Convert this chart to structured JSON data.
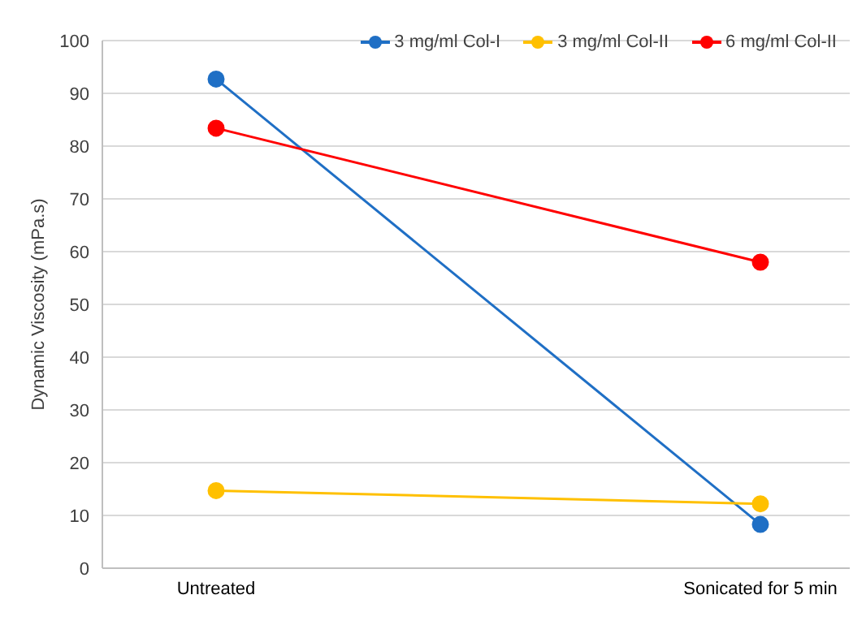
{
  "chart_data": {
    "type": "line",
    "ylabel": "Dynamic Viscosity (mPa.s)",
    "categories": [
      "Untreated",
      "Sonicated for 5 min"
    ],
    "series": [
      {
        "name": "3 mg/ml Col-I",
        "color": "#1f6fc5",
        "values": [
          92.7,
          8.3
        ]
      },
      {
        "name": "3 mg/ml Col-II",
        "color": "#ffc000",
        "values": [
          14.7,
          12.2
        ]
      },
      {
        "name": "6 mg/ml Col-II",
        "color": "#ff0000",
        "values": [
          83.4,
          58.0
        ]
      }
    ],
    "ylim": [
      0,
      100
    ],
    "yticks": [
      0,
      10,
      20,
      30,
      40,
      50,
      60,
      70,
      80,
      90,
      100
    ],
    "grid": "y",
    "legend": "top right",
    "marker": "circle",
    "line_style": "solid"
  }
}
